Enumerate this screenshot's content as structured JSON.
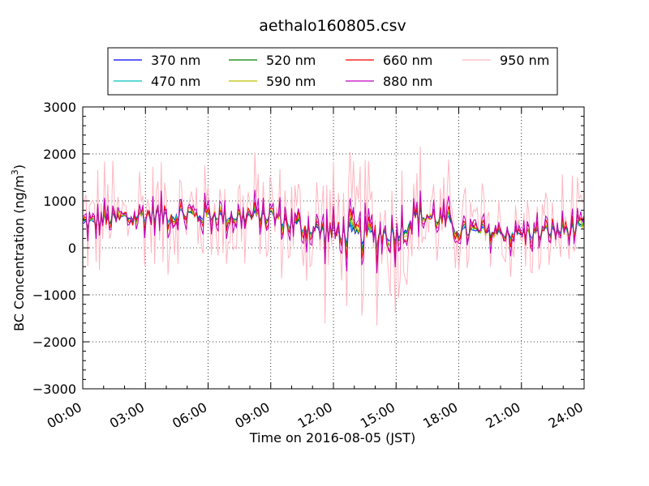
{
  "chart_data": {
    "type": "line",
    "title": "aethalo160805.csv",
    "xlabel": "Time on 2016-08-05 (JST)",
    "ylabel_prefix": "BC Concentration (ng/m",
    "ylabel_sup": "3",
    "ylabel_suffix": ")",
    "xlim_hours": [
      0,
      24
    ],
    "ylim": [
      -3000,
      3000
    ],
    "grid": true,
    "legend_position": "top, outside plot (4 columns)",
    "x_ticks": [
      {
        "hour": 0,
        "label": "00:00"
      },
      {
        "hour": 3,
        "label": "03:00"
      },
      {
        "hour": 6,
        "label": "06:00"
      },
      {
        "hour": 9,
        "label": "09:00"
      },
      {
        "hour": 12,
        "label": "12:00"
      },
      {
        "hour": 15,
        "label": "15:00"
      },
      {
        "hour": 18,
        "label": "18:00"
      },
      {
        "hour": 21,
        "label": "21:00"
      },
      {
        "hour": 24,
        "label": "24:00"
      }
    ],
    "y_ticks": [
      {
        "value": 3000,
        "label": "3000"
      },
      {
        "value": 2000,
        "label": "2000"
      },
      {
        "value": 1000,
        "label": "1000"
      },
      {
        "value": 0,
        "label": "0"
      },
      {
        "value": -1000,
        "label": "−1000"
      },
      {
        "value": -2000,
        "label": "−2000"
      },
      {
        "value": -3000,
        "label": "−3000"
      }
    ],
    "sample_interval_hours": 0.08,
    "series": [
      {
        "name": "370 nm",
        "color": "#0000ff",
        "spread": 0.25
      },
      {
        "name": "470 nm",
        "color": "#00bfbf",
        "spread": 0.3
      },
      {
        "name": "520 nm",
        "color": "#008000",
        "spread": 0.4
      },
      {
        "name": "590 nm",
        "color": "#bfbf00",
        "spread": 0.5
      },
      {
        "name": "660 nm",
        "color": "#ff0000",
        "spread": 0.65
      },
      {
        "name": "880 nm",
        "color": "#bf00bf",
        "spread": 0.9
      },
      {
        "name": "950 nm",
        "color": "#ffb6c1",
        "spread": 2.2
      }
    ],
    "baseline": [
      [
        0,
        500
      ],
      [
        3,
        700
      ],
      [
        6,
        700
      ],
      [
        7.5,
        650
      ],
      [
        9,
        700
      ],
      [
        10,
        500
      ],
      [
        12,
        300
      ],
      [
        13.5,
        250
      ],
      [
        14.5,
        300
      ],
      [
        15,
        300
      ],
      [
        16,
        700
      ],
      [
        17.3,
        600
      ],
      [
        18,
        350
      ],
      [
        21,
        300
      ],
      [
        24,
        400
      ]
    ],
    "amplitude": [
      [
        0,
        500
      ],
      [
        3,
        600
      ],
      [
        6,
        550
      ],
      [
        9,
        520
      ],
      [
        12,
        800
      ],
      [
        15,
        850
      ],
      [
        16.5,
        650
      ],
      [
        18,
        500
      ],
      [
        21,
        480
      ],
      [
        24,
        500
      ]
    ]
  }
}
